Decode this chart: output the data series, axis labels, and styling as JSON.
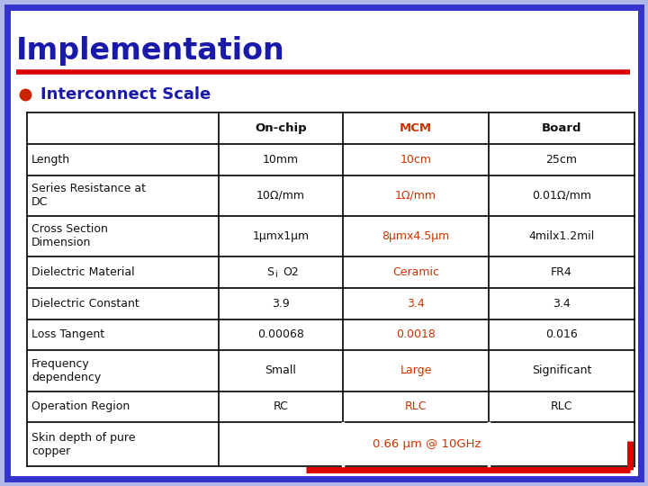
{
  "title": "Implementation",
  "subtitle": "Interconnect Scale",
  "bg_outer": "#b0b8e8",
  "bg_inner": "#ffffff",
  "title_color": "#1a1aaa",
  "red_line_color": "#dd0000",
  "bullet_color": "#cc2200",
  "orange": "#cc3300",
  "black": "#111111",
  "border_color": "#3333cc",
  "header_row": [
    "",
    "On-chip",
    "MCM",
    "Board"
  ],
  "rows": [
    [
      "Length",
      "10mm",
      "10cm",
      "25cm"
    ],
    [
      "Series Resistance at\nDC",
      "10Ω/mm",
      "1Ω/mm",
      "0.01Ω/mm"
    ],
    [
      "Cross Section\nDimension",
      "1μmx1μm",
      "8μmx4.5μm",
      "4milx1.2mil"
    ],
    [
      "Dielectric Material",
      "SiO2",
      "Ceramic",
      "FR4"
    ],
    [
      "Dielectric Constant",
      "3.9",
      "3.4",
      "3.4"
    ],
    [
      "Loss Tangent",
      "0.00068",
      "0.0018",
      "0.016"
    ],
    [
      "Frequency\ndependency",
      "Small",
      "Large",
      "Significant"
    ],
    [
      "Operation Region",
      "RC",
      "RLC",
      "RLC"
    ],
    [
      "Skin depth of pure\ncopper",
      "",
      "0.66 μm @ 10GHz",
      ""
    ]
  ]
}
